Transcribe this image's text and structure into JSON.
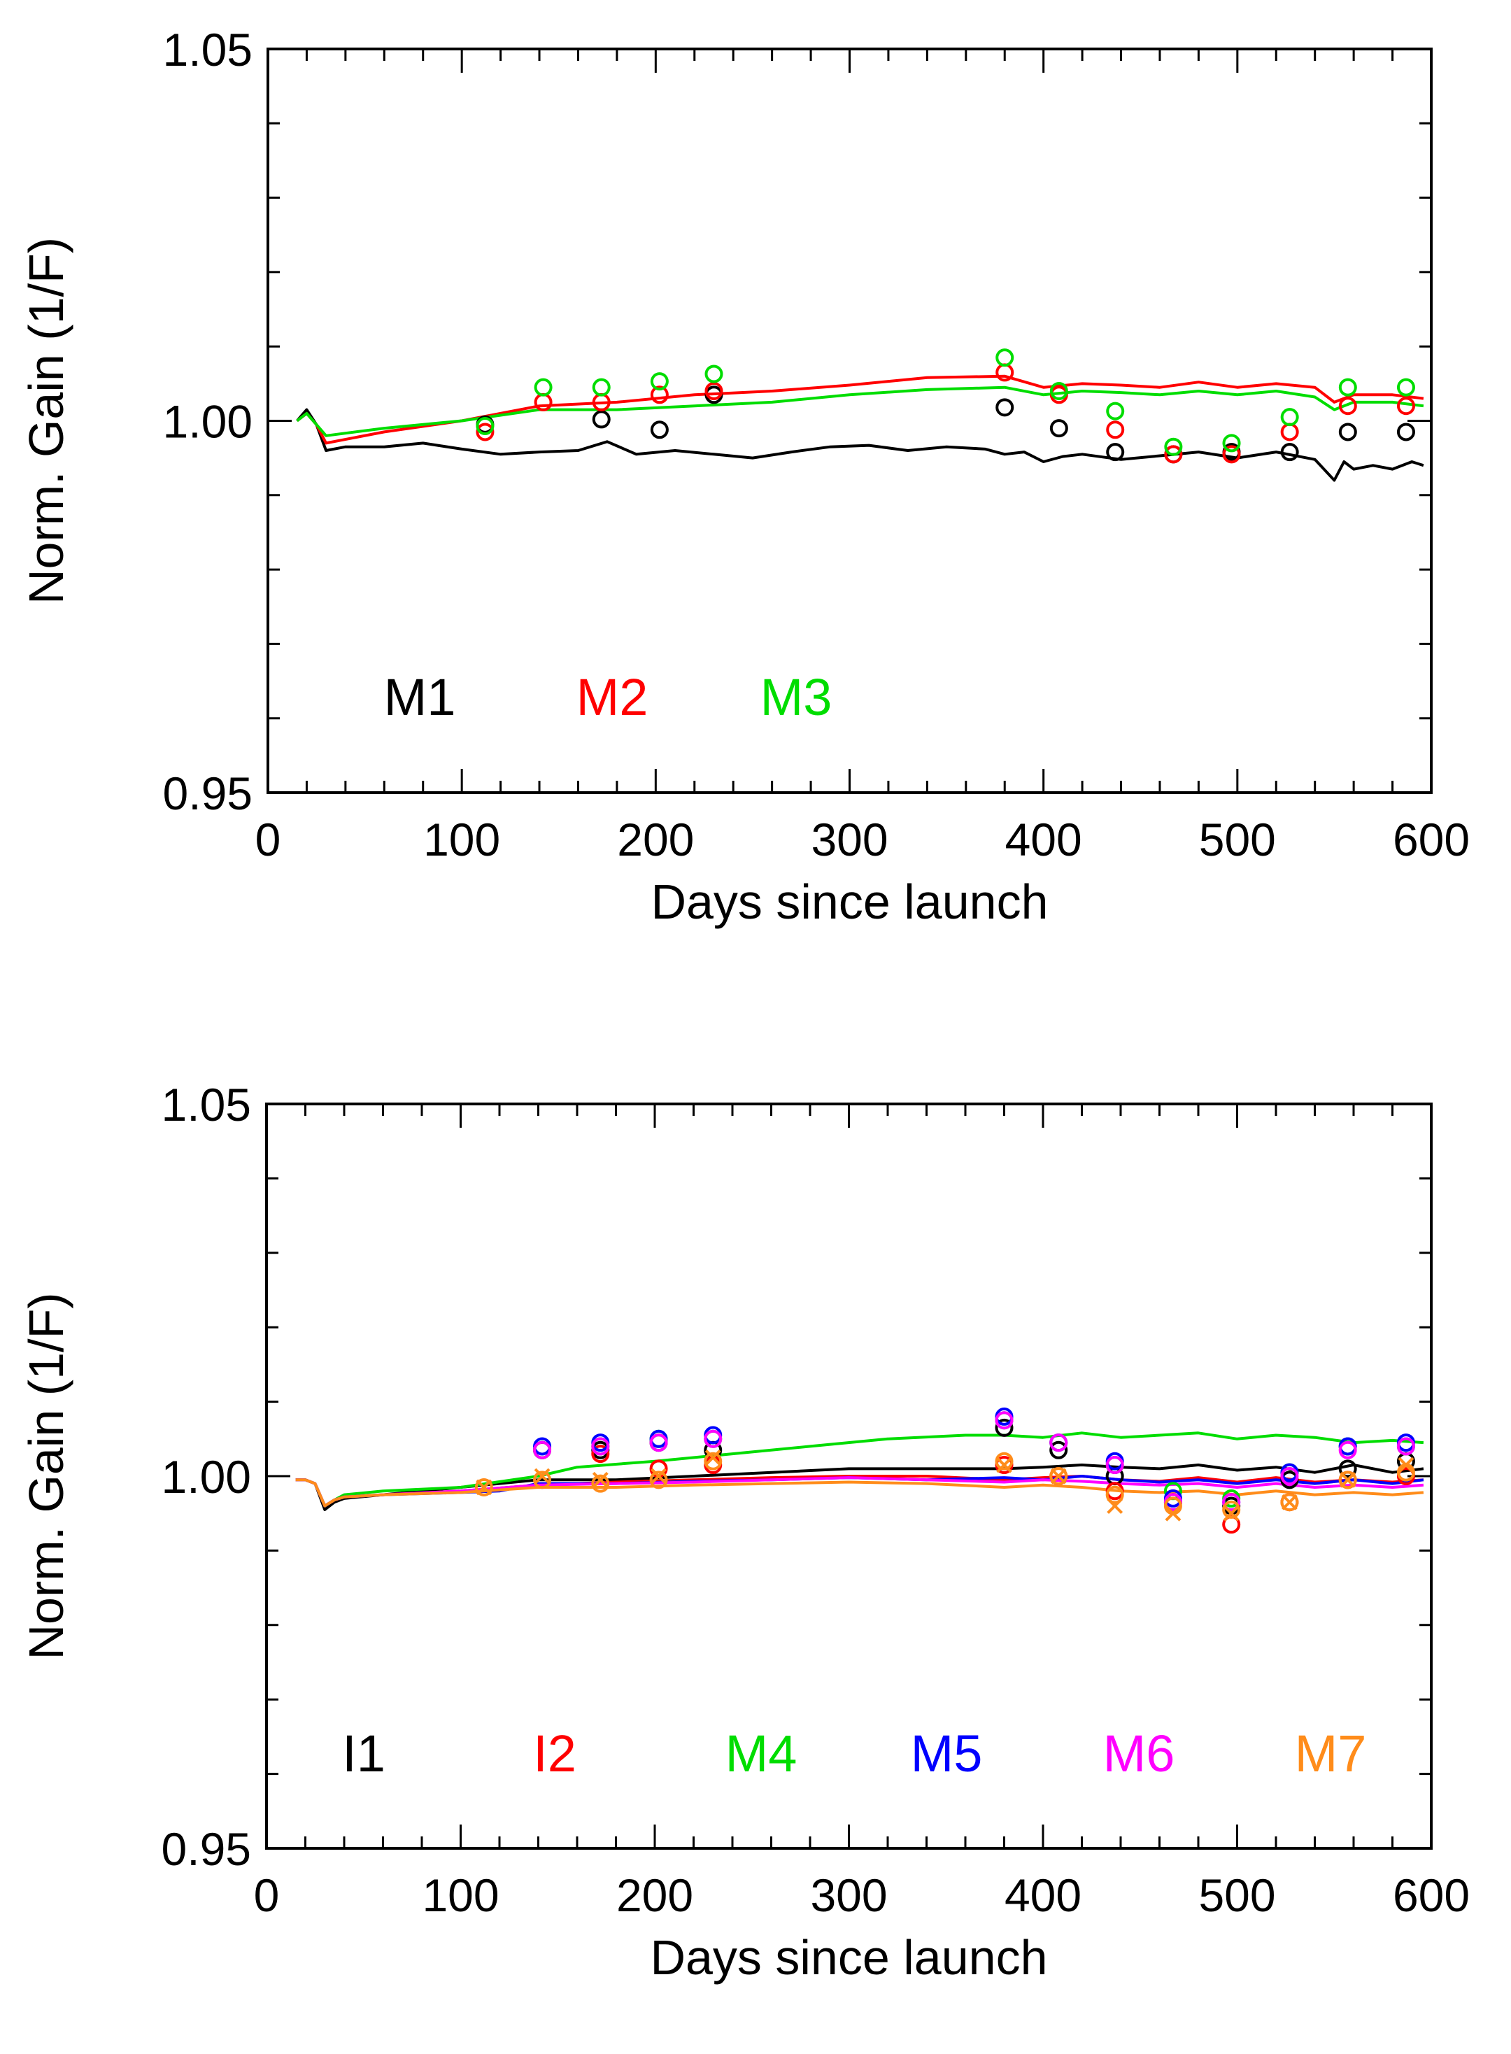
{
  "chart_data": [
    {
      "type": "line",
      "title": "",
      "xlabel": "Days since launch",
      "ylabel": "Norm. Gain (1/F)",
      "xlim": [
        0,
        600
      ],
      "ylim": [
        0.95,
        1.05
      ],
      "xticks": [
        0,
        100,
        200,
        300,
        400,
        500,
        600
      ],
      "xtick_labels": [
        "0",
        "100",
        "200",
        "300",
        "400",
        "500",
        "600"
      ],
      "yticks": [
        0.95,
        1.0,
        1.05
      ],
      "ytick_labels": [
        "0.95",
        "1.00",
        "1.05"
      ],
      "legend": [
        "M1",
        "M2",
        "M3"
      ],
      "series": [
        {
          "name": "M1",
          "color": "#000000",
          "x": [
            15,
            20,
            25,
            30,
            40,
            60,
            80,
            100,
            120,
            140,
            160,
            175,
            190,
            210,
            230,
            250,
            270,
            290,
            310,
            330,
            350,
            370,
            380,
            390,
            400,
            410,
            420,
            440,
            460,
            480,
            500,
            520,
            540,
            550,
            555,
            560,
            570,
            580,
            590,
            596
          ],
          "y": [
            1.0,
            1.0015,
            0.9995,
            0.996,
            0.9965,
            0.9965,
            0.997,
            0.9962,
            0.9955,
            0.9958,
            0.996,
            0.9972,
            0.9955,
            0.996,
            0.9955,
            0.995,
            0.9958,
            0.9965,
            0.9967,
            0.996,
            0.9965,
            0.9962,
            0.9955,
            0.9958,
            0.9945,
            0.9952,
            0.9955,
            0.9948,
            0.9953,
            0.9958,
            0.995,
            0.9958,
            0.9948,
            0.992,
            0.9945,
            0.9935,
            0.994,
            0.9935,
            0.9945,
            0.994
          ]
        },
        {
          "name": "M2",
          "color": "#ff0000",
          "x": [
            15,
            20,
            25,
            30,
            60,
            100,
            140,
            180,
            220,
            260,
            300,
            340,
            380,
            400,
            420,
            440,
            460,
            480,
            500,
            520,
            540,
            550,
            560,
            580,
            596
          ],
          "y": [
            1.0,
            1.001,
            0.9995,
            0.997,
            0.9985,
            1.0,
            1.002,
            1.0025,
            1.0035,
            1.004,
            1.0048,
            1.0058,
            1.006,
            1.0045,
            1.005,
            1.0048,
            1.0045,
            1.0052,
            1.0045,
            1.005,
            1.0045,
            1.0025,
            1.0035,
            1.0035,
            1.003
          ]
        },
        {
          "name": "M3",
          "color": "#00dd00",
          "x": [
            15,
            20,
            25,
            30,
            60,
            100,
            140,
            180,
            220,
            260,
            300,
            340,
            380,
            400,
            420,
            440,
            460,
            480,
            500,
            520,
            540,
            550,
            560,
            580,
            596
          ],
          "y": [
            1.0,
            1.001,
            0.9995,
            0.998,
            0.999,
            1.0,
            1.0015,
            1.0015,
            1.002,
            1.0025,
            1.0035,
            1.0042,
            1.0045,
            1.0035,
            1.004,
            1.0038,
            1.0035,
            1.004,
            1.0035,
            1.004,
            1.0032,
            1.0015,
            1.0025,
            1.0025,
            1.002
          ]
        }
      ],
      "markers": [
        {
          "name": "M1",
          "color": "#000000",
          "symbol": "circle",
          "x": [
            112,
            172,
            202,
            230,
            380,
            408,
            437,
            467,
            497,
            527,
            557,
            587
          ],
          "y": [
            0.9995,
            1.0002,
            0.9988,
            1.0035,
            1.0018,
            0.999,
            0.9958,
            0.9955,
            0.9958,
            0.9958,
            0.9985,
            0.9985
          ]
        },
        {
          "name": "M2",
          "color": "#ff0000",
          "symbol": "circle",
          "x": [
            112,
            142,
            172,
            202,
            230,
            380,
            408,
            437,
            467,
            497,
            527,
            557,
            587
          ],
          "y": [
            0.9985,
            1.0025,
            1.0025,
            1.0035,
            1.004,
            1.0065,
            1.0035,
            0.9988,
            0.9955,
            0.9955,
            0.9985,
            1.002,
            1.002
          ]
        },
        {
          "name": "M3",
          "color": "#00dd00",
          "symbol": "circle",
          "x": [
            112,
            142,
            172,
            202,
            230,
            380,
            408,
            437,
            467,
            497,
            527,
            557,
            587
          ],
          "y": [
            0.9993,
            1.0045,
            1.0045,
            1.0053,
            1.0063,
            1.0085,
            1.004,
            1.0013,
            0.9965,
            0.997,
            1.0005,
            1.0045,
            1.0045
          ]
        }
      ]
    },
    {
      "type": "line",
      "title": "",
      "xlabel": "Days since launch",
      "ylabel": "Norm. Gain (1/F)",
      "xlim": [
        0,
        600
      ],
      "ylim": [
        0.95,
        1.05
      ],
      "xticks": [
        0,
        100,
        200,
        300,
        400,
        500,
        600
      ],
      "xtick_labels": [
        "0",
        "100",
        "200",
        "300",
        "400",
        "500",
        "600"
      ],
      "yticks": [
        0.95,
        1.0,
        1.05
      ],
      "ytick_labels": [
        "0.95",
        "1.00",
        "1.05"
      ],
      "legend": [
        "I1",
        "I2",
        "M4",
        "M5",
        "M6",
        "M7"
      ],
      "series": [
        {
          "name": "I1",
          "color": "#000000",
          "x": [
            15,
            20,
            25,
            30,
            35,
            40,
            60,
            100,
            140,
            180,
            220,
            260,
            300,
            340,
            380,
            400,
            420,
            440,
            460,
            480,
            500,
            520,
            540,
            560,
            580,
            596
          ],
          "y": [
            0.9995,
            0.9995,
            0.999,
            0.9955,
            0.9965,
            0.997,
            0.9975,
            0.9985,
            0.9995,
            0.9995,
            1.0,
            1.0005,
            1.001,
            1.001,
            1.001,
            1.0012,
            1.0015,
            1.0012,
            1.001,
            1.0015,
            1.0008,
            1.0012,
            1.0005,
            1.0015,
            1.0005,
            1.001
          ]
        },
        {
          "name": "I2",
          "color": "#ff0000",
          "x": [
            15,
            20,
            25,
            30,
            35,
            40,
            60,
            100,
            140,
            180,
            220,
            260,
            300,
            340,
            380,
            400,
            420,
            440,
            460,
            480,
            500,
            520,
            540,
            560,
            580,
            596
          ],
          "y": [
            0.9995,
            0.9995,
            0.999,
            0.996,
            0.9968,
            0.9972,
            0.9975,
            0.998,
            0.9988,
            0.9992,
            0.9995,
            0.9998,
            1.0,
            1.0,
            0.9995,
            0.9998,
            1.0,
            0.9995,
            0.9993,
            0.9998,
            0.9992,
            0.9998,
            0.9992,
            0.9995,
            0.9992,
            0.9995
          ]
        },
        {
          "name": "M4",
          "color": "#00dd00",
          "x": [
            15,
            20,
            25,
            30,
            35,
            40,
            60,
            100,
            140,
            160,
            200,
            240,
            280,
            320,
            360,
            380,
            400,
            420,
            440,
            460,
            480,
            500,
            520,
            540,
            560,
            580,
            596
          ],
          "y": [
            0.9995,
            0.9995,
            0.999,
            0.996,
            0.9968,
            0.9975,
            0.998,
            0.9985,
            1.0,
            1.0012,
            1.002,
            1.003,
            1.004,
            1.005,
            1.0055,
            1.0055,
            1.0052,
            1.0058,
            1.0052,
            1.0055,
            1.0058,
            1.005,
            1.0055,
            1.0052,
            1.0045,
            1.0048,
            1.0045
          ]
        },
        {
          "name": "M5",
          "color": "#0000ff",
          "x": [
            15,
            20,
            25,
            30,
            35,
            40,
            60,
            100,
            120,
            140,
            180,
            220,
            260,
            300,
            340,
            380,
            400,
            420,
            440,
            460,
            480,
            500,
            520,
            540,
            560,
            580,
            596
          ],
          "y": [
            0.9995,
            0.9995,
            0.999,
            0.996,
            0.9968,
            0.9972,
            0.9975,
            0.9978,
            0.998,
            0.999,
            0.999,
            0.9993,
            0.9995,
            0.9998,
            0.9995,
            0.9998,
            0.9995,
            1.0,
            0.9995,
            0.9992,
            0.9995,
            0.999,
            0.9995,
            0.999,
            0.9995,
            0.999,
            0.9995
          ]
        },
        {
          "name": "M6",
          "color": "#ff00ff",
          "x": [
            15,
            20,
            25,
            30,
            35,
            40,
            60,
            100,
            140,
            180,
            220,
            260,
            300,
            340,
            380,
            400,
            420,
            440,
            460,
            480,
            500,
            520,
            540,
            560,
            580,
            596
          ],
          "y": [
            0.9995,
            0.9995,
            0.999,
            0.996,
            0.9968,
            0.9972,
            0.9975,
            0.998,
            0.9988,
            0.999,
            0.9992,
            0.9995,
            0.9998,
            0.9995,
            0.9992,
            0.9995,
            0.9993,
            0.999,
            0.9988,
            0.999,
            0.9985,
            0.999,
            0.9985,
            0.9988,
            0.9985,
            0.9988
          ]
        },
        {
          "name": "M7",
          "color": "#ff8c1a",
          "x": [
            15,
            20,
            25,
            30,
            35,
            40,
            60,
            100,
            140,
            180,
            220,
            260,
            300,
            340,
            380,
            400,
            420,
            440,
            460,
            480,
            500,
            520,
            540,
            560,
            580,
            596
          ],
          "y": [
            0.9995,
            0.9995,
            0.999,
            0.996,
            0.9968,
            0.9972,
            0.9975,
            0.9978,
            0.9985,
            0.9985,
            0.9988,
            0.999,
            0.9992,
            0.999,
            0.9985,
            0.9988,
            0.9985,
            0.998,
            0.9978,
            0.998,
            0.9975,
            0.998,
            0.9975,
            0.9978,
            0.9975,
            0.9978
          ]
        }
      ],
      "markers": [
        {
          "name": "I1",
          "color": "#000000",
          "symbol": "circle",
          "x": [
            142,
            172,
            202,
            230,
            380,
            408,
            437,
            467,
            497,
            527,
            557,
            587
          ],
          "y": [
            1.0035,
            1.0035,
            1.0045,
            1.0035,
            1.0065,
            1.0035,
            1.0,
            0.9965,
            0.996,
            0.9995,
            1.001,
            1.002
          ]
        },
        {
          "name": "I2",
          "color": "#ff0000",
          "symbol": "circle",
          "x": [
            142,
            172,
            202,
            230,
            380,
            408,
            437,
            467,
            497,
            527,
            557,
            587
          ],
          "y": [
            1.0035,
            1.003,
            1.001,
            1.0015,
            1.0015,
            1.0,
            0.998,
            0.9965,
            0.9935,
            0.9965,
            0.9995,
            1.0
          ]
        },
        {
          "name": "M4",
          "color": "#00dd00",
          "symbol": "circle",
          "x": [
            142,
            172,
            202,
            230,
            380,
            408,
            437,
            467,
            497,
            527,
            557,
            587
          ],
          "y": [
            1.0035,
            1.004,
            1.005,
            1.005,
            1.0075,
            1.0045,
            1.0015,
            0.998,
            0.997,
            1.0005,
            1.004,
            1.004
          ]
        },
        {
          "name": "M5",
          "color": "#0000ff",
          "symbol": "circle",
          "x": [
            142,
            172,
            202,
            230,
            380,
            408,
            437,
            467,
            497,
            527,
            557,
            587
          ],
          "y": [
            1.004,
            1.0045,
            1.005,
            1.0055,
            1.008,
            1.0045,
            1.002,
            0.997,
            0.9965,
            1.0005,
            1.004,
            1.0045
          ]
        },
        {
          "name": "M6",
          "color": "#ff00ff",
          "symbol": "circle",
          "x": [
            142,
            172,
            202,
            230,
            380,
            408,
            437,
            467,
            497,
            527,
            557,
            587
          ],
          "y": [
            1.0035,
            1.004,
            1.0045,
            1.005,
            1.0075,
            1.0045,
            1.0015,
            0.9965,
            0.9965,
            1.0,
            1.0035,
            1.004
          ]
        },
        {
          "name": "M7",
          "color": "#ff8c1a",
          "symbol": "x",
          "x": [
            112,
            142,
            172,
            202,
            230,
            380,
            408,
            437,
            467,
            497,
            527,
            557,
            587
          ],
          "y": [
            0.9985,
            1.0,
            0.9995,
            1.0,
            1.0025,
            1.0015,
            1.0,
            0.996,
            0.995,
            0.995,
            0.9965,
            0.9995,
            1.0015
          ]
        },
        {
          "name": "M7",
          "color": "#ff8c1a",
          "symbol": "circle",
          "x": [
            112,
            142,
            172,
            202,
            230,
            380,
            408,
            437,
            467,
            497,
            527,
            557,
            587
          ],
          "y": [
            0.9985,
            0.9995,
            0.999,
            0.9995,
            1.002,
            1.002,
            1.0,
            0.9975,
            0.996,
            0.9955,
            0.9965,
            0.9995,
            1.0005
          ]
        }
      ]
    }
  ]
}
